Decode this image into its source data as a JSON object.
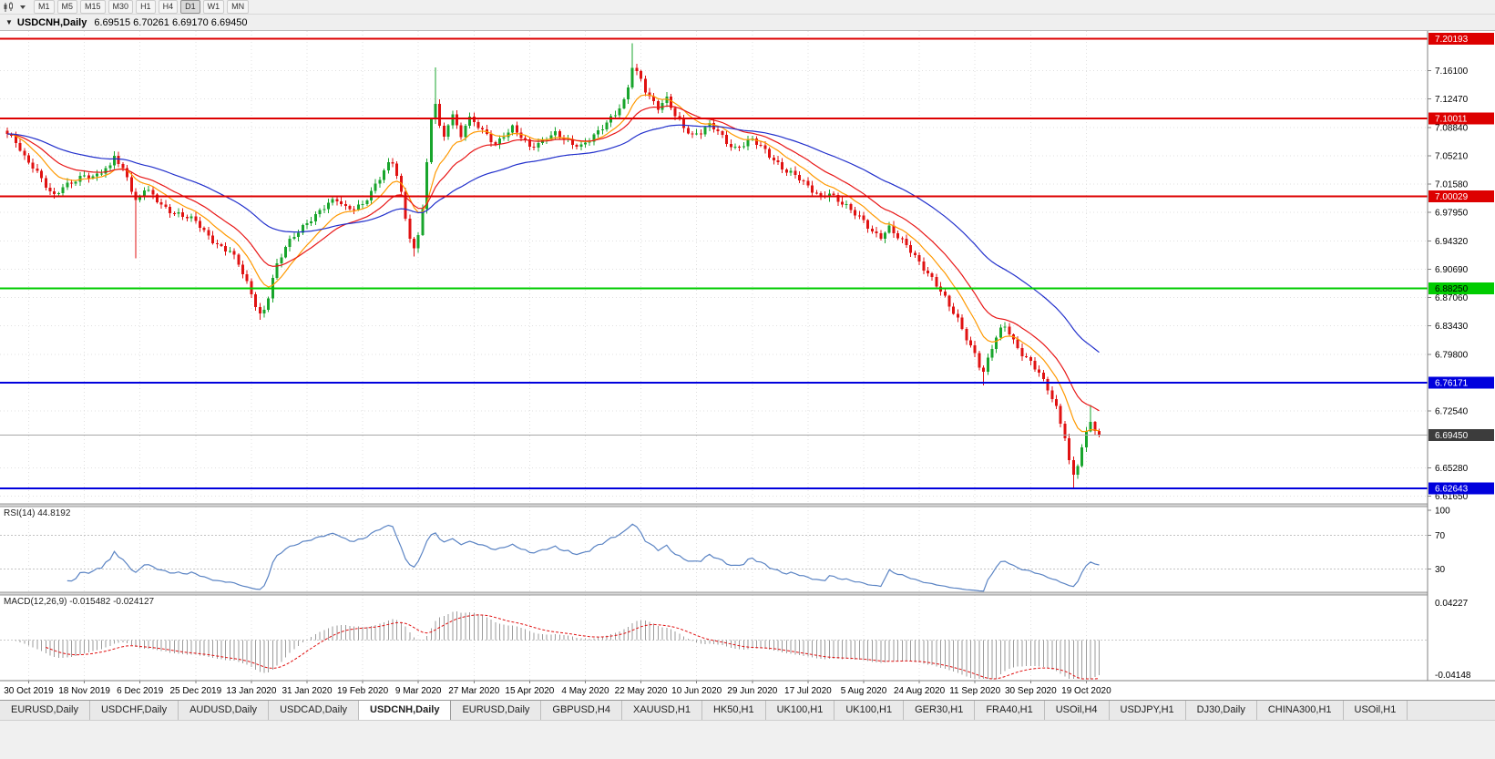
{
  "toolbar": {
    "timeframes": [
      "M1",
      "M5",
      "M15",
      "M30",
      "H1",
      "H4",
      "D1",
      "W1",
      "MN"
    ],
    "active_timeframe": "D1"
  },
  "chart_header": {
    "dropdown_glyph": "▼",
    "title": "USDCNH,Daily",
    "ohlc": "6.69515 6.70261 6.69170 6.69450"
  },
  "tabs": {
    "items": [
      "EURUSD,Daily",
      "USDCHF,Daily",
      "AUDUSD,Daily",
      "USDCAD,Daily",
      "USDCNH,Daily",
      "EURUSD,Daily",
      "GBPUSD,H4",
      "XAUUSD,H1",
      "HK50,H1",
      "UK100,H1",
      "UK100,H1",
      "GER30,H1",
      "FRA40,H1",
      "USOil,H4",
      "USDJPY,H1",
      "DJ30,Daily",
      "CHINA300,H1",
      "USOil,H1"
    ],
    "active_index": 4
  },
  "chart_data": {
    "type": "candlestick",
    "symbol": "USDCNH",
    "timeframe": "Daily",
    "x_labels": [
      "30 Oct 2019",
      "18 Nov 2019",
      "6 Dec 2019",
      "25 Dec 2019",
      "13 Jan 2020",
      "31 Jan 2020",
      "19 Feb 2020",
      "9 Mar 2020",
      "27 Mar 2020",
      "15 Apr 2020",
      "4 May 2020",
      "22 May 2020",
      "10 Jun 2020",
      "29 Jun 2020",
      "17 Jul 2020",
      "5 Aug 2020",
      "24 Aug 2020",
      "11 Sep 2020",
      "30 Sep 2020",
      "19 Oct 2020"
    ],
    "first_label_candle": 5,
    "candles_per_label": 13,
    "num_candles": 256,
    "ylim": [
      6.6066,
      7.2118
    ],
    "y_ticks": [
      "7.16100",
      "7.12470",
      "7.08840",
      "7.05210",
      "7.01580",
      "6.97950",
      "6.94320",
      "6.90690",
      "6.87060",
      "6.83430",
      "6.79800",
      "6.72540",
      "6.65280",
      "6.61650"
    ],
    "grid_color": "#e0e0e0",
    "candle_up_color": "#18a52c",
    "candle_down_color": "#e01212",
    "close_anchors": [
      [
        0,
        7.078
      ],
      [
        2,
        7.07
      ],
      [
        4,
        7.052
      ],
      [
        6,
        7.04
      ],
      [
        8,
        7.022
      ],
      [
        10,
        7.003
      ],
      [
        11,
        6.999
      ],
      [
        13,
        7.012
      ],
      [
        15,
        7.02
      ],
      [
        18,
        7.028
      ],
      [
        20,
        7.022
      ],
      [
        22,
        7.03
      ],
      [
        24,
        7.038
      ],
      [
        25,
        7.056
      ],
      [
        26,
        7.044
      ],
      [
        28,
        7.028
      ],
      [
        29,
        7.008
      ],
      [
        30,
        6.992
      ],
      [
        32,
        7.008
      ],
      [
        34,
        7.0
      ],
      [
        36,
        6.99
      ],
      [
        38,
        6.983
      ],
      [
        41,
        6.975
      ],
      [
        44,
        6.967
      ],
      [
        46,
        6.955
      ],
      [
        48,
        6.945
      ],
      [
        50,
        6.936
      ],
      [
        52,
        6.93
      ],
      [
        54,
        6.912
      ],
      [
        56,
        6.888
      ],
      [
        58,
        6.862
      ],
      [
        59,
        6.85
      ],
      [
        60,
        6.856
      ],
      [
        61,
        6.874
      ],
      [
        62,
        6.896
      ],
      [
        63,
        6.912
      ],
      [
        65,
        6.934
      ],
      [
        67,
        6.948
      ],
      [
        69,
        6.962
      ],
      [
        71,
        6.973
      ],
      [
        73,
        6.982
      ],
      [
        75,
        6.99
      ],
      [
        77,
        6.994
      ],
      [
        79,
        6.985
      ],
      [
        81,
        6.987
      ],
      [
        83,
        6.992
      ],
      [
        85,
        7.005
      ],
      [
        87,
        7.022
      ],
      [
        89,
        7.04
      ],
      [
        90,
        7.044
      ],
      [
        91,
        7.028
      ],
      [
        92,
        7.005
      ],
      [
        93,
        6.975
      ],
      [
        94,
        6.95
      ],
      [
        95,
        6.932
      ],
      [
        96,
        6.95
      ],
      [
        97,
        6.985
      ],
      [
        98,
        7.04
      ],
      [
        99,
        7.095
      ],
      [
        100,
        7.12
      ],
      [
        101,
        7.09
      ],
      [
        102,
        7.075
      ],
      [
        103,
        7.095
      ],
      [
        104,
        7.108
      ],
      [
        105,
        7.09
      ],
      [
        106,
        7.078
      ],
      [
        107,
        7.092
      ],
      [
        108,
        7.098
      ],
      [
        110,
        7.088
      ],
      [
        112,
        7.078
      ],
      [
        114,
        7.068
      ],
      [
        116,
        7.08
      ],
      [
        118,
        7.088
      ],
      [
        120,
        7.075
      ],
      [
        122,
        7.062
      ],
      [
        124,
        7.068
      ],
      [
        126,
        7.078
      ],
      [
        128,
        7.082
      ],
      [
        130,
        7.072
      ],
      [
        132,
        7.065
      ],
      [
        134,
        7.064
      ],
      [
        136,
        7.075
      ],
      [
        138,
        7.085
      ],
      [
        140,
        7.094
      ],
      [
        142,
        7.104
      ],
      [
        144,
        7.12
      ],
      [
        145,
        7.14
      ],
      [
        146,
        7.168
      ],
      [
        147,
        7.16
      ],
      [
        148,
        7.152
      ],
      [
        149,
        7.138
      ],
      [
        150,
        7.128
      ],
      [
        152,
        7.112
      ],
      [
        154,
        7.123
      ],
      [
        156,
        7.104
      ],
      [
        158,
        7.09
      ],
      [
        160,
        7.08
      ],
      [
        162,
        7.082
      ],
      [
        164,
        7.09
      ],
      [
        166,
        7.082
      ],
      [
        168,
        7.07
      ],
      [
        170,
        7.063
      ],
      [
        172,
        7.068
      ],
      [
        174,
        7.072
      ],
      [
        176,
        7.062
      ],
      [
        178,
        7.052
      ],
      [
        180,
        7.043
      ],
      [
        182,
        7.034
      ],
      [
        184,
        7.028
      ],
      [
        186,
        7.016
      ],
      [
        188,
        7.006
      ],
      [
        190,
        7.0
      ],
      [
        192,
        7.006
      ],
      [
        194,
        6.996
      ],
      [
        196,
        6.986
      ],
      [
        198,
        6.976
      ],
      [
        200,
        6.968
      ],
      [
        202,
        6.956
      ],
      [
        204,
        6.95
      ],
      [
        206,
        6.96
      ],
      [
        208,
        6.946
      ],
      [
        210,
        6.936
      ],
      [
        212,
        6.924
      ],
      [
        214,
        6.91
      ],
      [
        216,
        6.896
      ],
      [
        218,
        6.878
      ],
      [
        220,
        6.858
      ],
      [
        222,
        6.842
      ],
      [
        224,
        6.82
      ],
      [
        226,
        6.8
      ],
      [
        227,
        6.785
      ],
      [
        228,
        6.775
      ],
      [
        229,
        6.79
      ],
      [
        230,
        6.805
      ],
      [
        231,
        6.818
      ],
      [
        232,
        6.828
      ],
      [
        233,
        6.834
      ],
      [
        234,
        6.826
      ],
      [
        235,
        6.816
      ],
      [
        236,
        6.808
      ],
      [
        237,
        6.8
      ],
      [
        239,
        6.788
      ],
      [
        241,
        6.772
      ],
      [
        243,
        6.752
      ],
      [
        245,
        6.73
      ],
      [
        246,
        6.712
      ],
      [
        247,
        6.695
      ],
      [
        248,
        6.662
      ],
      [
        249,
        6.645
      ],
      [
        250,
        6.658
      ],
      [
        251,
        6.676
      ],
      [
        252,
        6.696
      ],
      [
        253,
        6.712
      ],
      [
        254,
        6.7
      ],
      [
        255,
        6.6945
      ]
    ],
    "wick_overrides": [
      {
        "i": 11,
        "low": 6.997
      },
      {
        "i": 30,
        "low": 6.921
      },
      {
        "i": 59,
        "low": 6.842
      },
      {
        "i": 95,
        "low": 6.923
      },
      {
        "i": 100,
        "high": 7.165
      },
      {
        "i": 146,
        "high": 7.196
      },
      {
        "i": 228,
        "low": 6.758
      },
      {
        "i": 249,
        "low": 6.627
      },
      {
        "i": 253,
        "high": 6.733
      },
      {
        "i": 255,
        "high": 6.70261,
        "low": 6.6917
      }
    ],
    "hlines": [
      {
        "price": 7.20193,
        "label": "7.20193",
        "color": "#dd0000",
        "label_fg": "#ffffff"
      },
      {
        "price": 7.10011,
        "label": "7.10011",
        "color": "#dd0000",
        "label_fg": "#ffffff"
      },
      {
        "price": 7.00029,
        "label": "7.00029",
        "color": "#dd0000",
        "label_fg": "#ffffff"
      },
      {
        "price": 6.8825,
        "label": "6.88250",
        "color": "#00cc00",
        "label_fg": "#000000"
      },
      {
        "price": 6.76171,
        "label": "6.76171",
        "color": "#0000dd",
        "label_fg": "#ffffff"
      },
      {
        "price": 6.62643,
        "label": "6.62643",
        "color": "#0000dd",
        "label_fg": "#ffffff"
      }
    ],
    "current_price": {
      "value": 6.6945,
      "label": "6.69450",
      "line_color": "#a8a8a8",
      "badge_bg": "#3c3c3c",
      "badge_fg": "#ffffff"
    },
    "moving_averages": [
      {
        "period": 10,
        "type": "ema",
        "color": "#ff9900"
      },
      {
        "period": 20,
        "type": "ema",
        "color": "#e81717"
      },
      {
        "period": 50,
        "type": "ema",
        "color": "#2230cc"
      }
    ],
    "indicators": {
      "rsi": {
        "display": "RSI(14) 44.8192",
        "period": 14,
        "levels": [
          70,
          30
        ],
        "axis_labels": [
          "100",
          "70",
          "30"
        ],
        "line_color": "#5b84c4"
      },
      "macd": {
        "display": "MACD(12,26,9) -0.015482 -0.024127",
        "fast": 12,
        "slow": 26,
        "signal": 9,
        "axis_top": "0.04227",
        "axis_bottom": "-0.04148",
        "hist_color": "#9b9b9b",
        "signal_color": "#e01010"
      }
    }
  }
}
